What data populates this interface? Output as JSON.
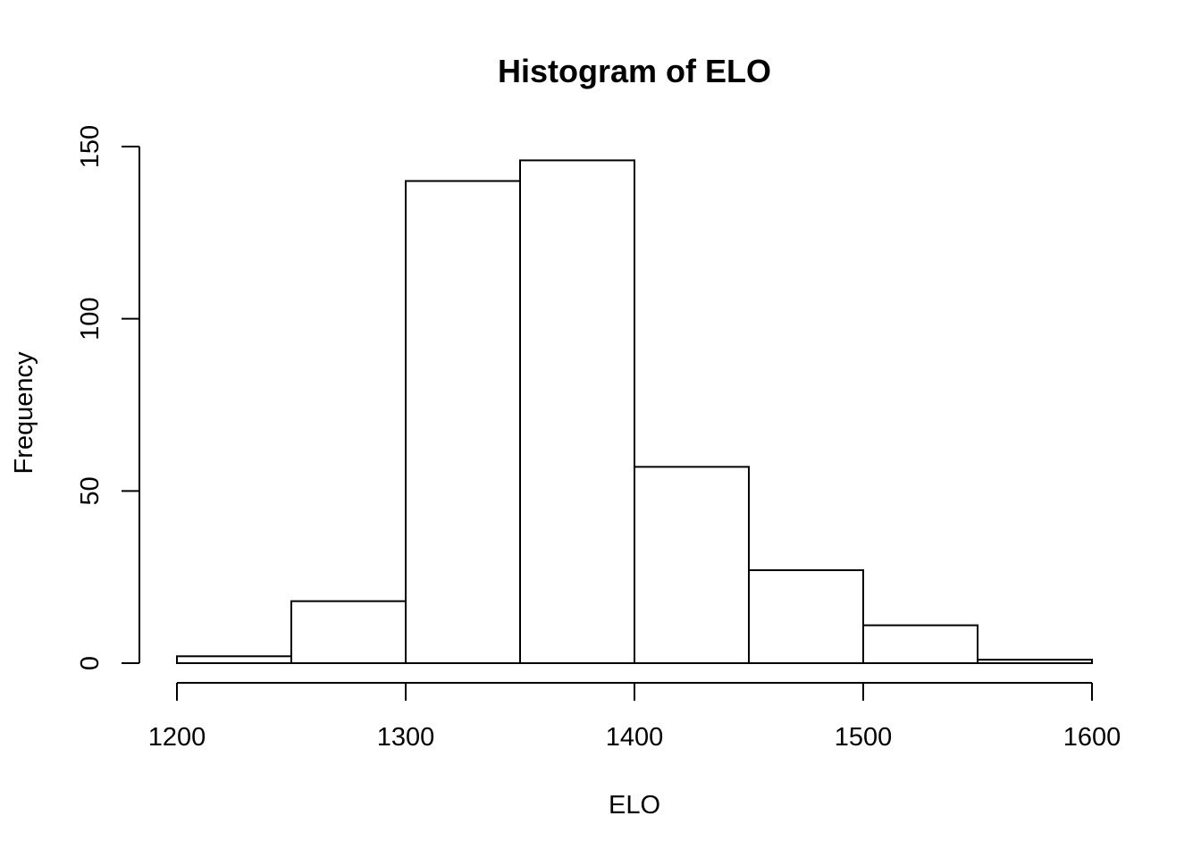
{
  "chart_data": {
    "type": "bar",
    "title": "Histogram of ELO",
    "xlabel": "ELO",
    "ylabel": "Frequency",
    "bins": [
      {
        "from": 1200,
        "to": 1250,
        "count": 2
      },
      {
        "from": 1250,
        "to": 1300,
        "count": 18
      },
      {
        "from": 1300,
        "to": 1350,
        "count": 140
      },
      {
        "from": 1350,
        "to": 1400,
        "count": 146
      },
      {
        "from": 1400,
        "to": 1450,
        "count": 57
      },
      {
        "from": 1450,
        "to": 1500,
        "count": 27
      },
      {
        "from": 1500,
        "to": 1550,
        "count": 11
      },
      {
        "from": 1550,
        "to": 1600,
        "count": 1
      }
    ],
    "xlim": [
      1200,
      1600
    ],
    "ylim": [
      0,
      150
    ],
    "x_ticks": [
      1200,
      1300,
      1400,
      1500,
      1600
    ],
    "y_ticks": [
      0,
      50,
      100,
      150
    ],
    "grid": false,
    "colors": {
      "bar_fill": "#ffffff",
      "bar_stroke": "#000000"
    }
  }
}
